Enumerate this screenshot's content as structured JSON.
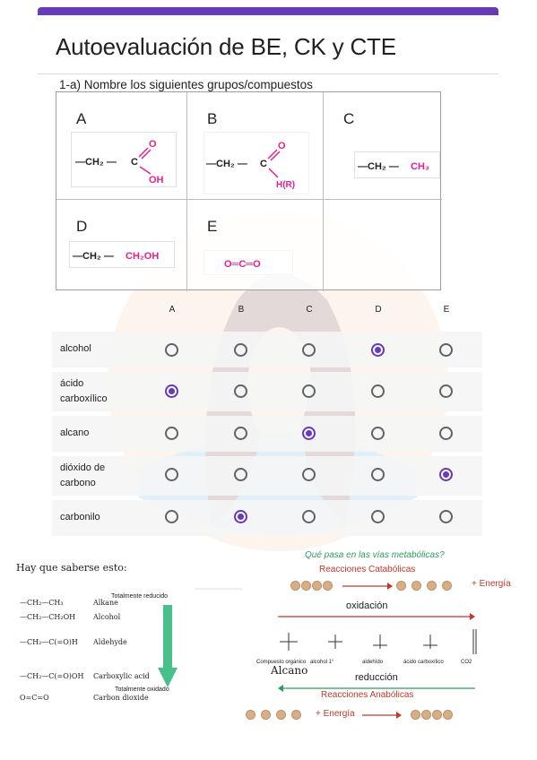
{
  "form": {
    "title": "Autoevaluación de BE, CK y CTE",
    "question": "1-a) Nombre los siguientes grupos/compuestos"
  },
  "compounds": [
    {
      "label": "A",
      "formula": "—CH₂ —C(=O)OH"
    },
    {
      "label": "B",
      "formula": "—CH₂ —C(=O)H(R)"
    },
    {
      "label": "C",
      "formula": "—CH₂ —CH₃"
    },
    {
      "label": "D",
      "formula": "—CH₂ —CH₂OH"
    },
    {
      "label": "E",
      "formula": "O=C=O"
    }
  ],
  "formula_text": {
    "ch2": "—CH₂ —",
    "c": "C",
    "o": "O",
    "oh": "OH",
    "hr": "H(R)",
    "ch3": "CH₃",
    "ch2oh": "CH₂OH",
    "co2": "O═C═O"
  },
  "grid": {
    "columns": [
      "A",
      "B",
      "C",
      "D",
      "E"
    ],
    "rows": [
      {
        "label": "alcohol",
        "selected": 3
      },
      {
        "label": "ácido carboxílico",
        "selected": 0
      },
      {
        "label": "alcano",
        "selected": 2
      },
      {
        "label": "dióxido de carbono",
        "selected": 4
      },
      {
        "label": "carbonilo",
        "selected": 1
      }
    ]
  },
  "notes": {
    "study": "Hay que saberse esto:",
    "alcano": "Alcano"
  },
  "oxidation_table": {
    "top": "Totalmente reducido",
    "bottom": "Totalmente oxidado",
    "rows": [
      {
        "formula": "—CH₂—CH₃",
        "name": "Alkane"
      },
      {
        "formula": "—CH₂—CH₂OH",
        "name": "Alcohol"
      },
      {
        "formula": "—CH₂—C(=O)H",
        "name": "Aldehyde"
      },
      {
        "formula": "—CH₂—C(=O)OH",
        "name": "Carboxylic acid"
      },
      {
        "formula": "O=C=O",
        "name": "Carbon dioxide"
      }
    ],
    "arrow_color": "#48c08a"
  },
  "metabolic": {
    "title": "Qué pasa en las vías metabólicas?",
    "catabolic": "Reacciones Catabólicas",
    "oxidation": "oxidación",
    "reduction": "reducción",
    "anabolic": "Reacciones Anabólicas",
    "energy": "+ Energía",
    "compounds": [
      "Compuesto orgánico",
      "alcohol 1°",
      "aldehído",
      "ácido carboxílico",
      "CO2"
    ]
  },
  "colors": {
    "accent": "#673ab7",
    "formula_pink": "#e91e8c",
    "red_label": "#c0392b",
    "green_title": "#2e9c5f"
  }
}
